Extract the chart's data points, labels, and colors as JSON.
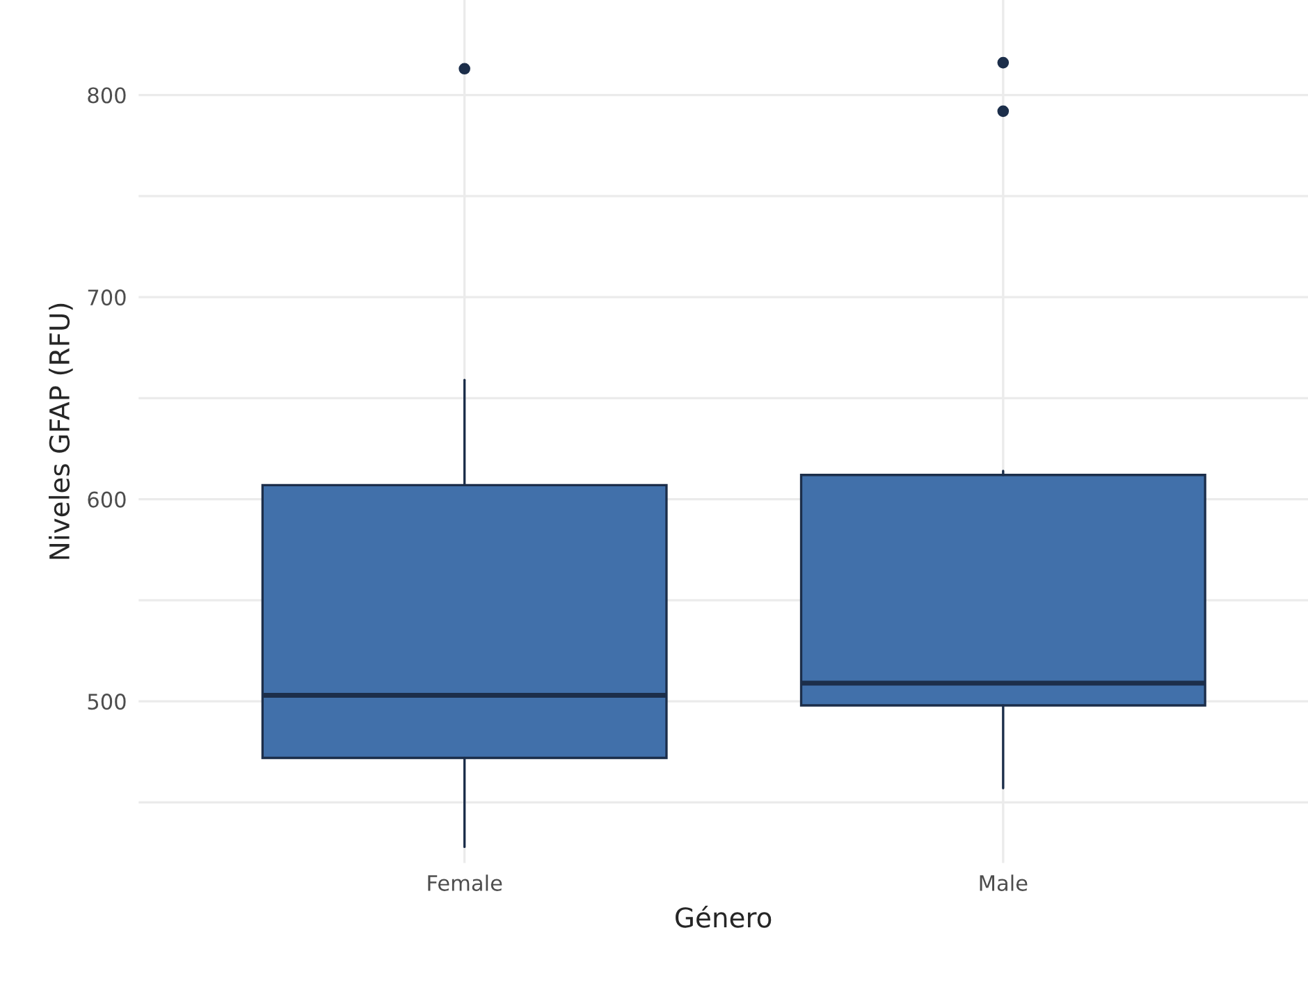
{
  "chart_data": {
    "type": "box",
    "xlabel": "Género",
    "ylabel": "Niveles GFAP (RFU)",
    "categories": [
      "Female",
      "Male"
    ],
    "series": [
      {
        "color": "#4170aa",
        "boxes": [
          {
            "low": 428,
            "q1": 472,
            "median": 503,
            "q3": 607,
            "high": 659,
            "outliers": [
              813
            ]
          },
          {
            "low": 457,
            "q1": 498,
            "median": 509,
            "q3": 612,
            "high": 614,
            "outliers": [
              816,
              792
            ]
          }
        ]
      }
    ],
    "ylim": [
      420,
      847
    ],
    "yticks": [
      {
        "value": 450,
        "label": null
      },
      500,
      {
        "value": 550,
        "label": null
      },
      600,
      {
        "value": 650,
        "label": null
      },
      700,
      {
        "value": 750,
        "label": null
      },
      800
    ],
    "grid": true
  }
}
